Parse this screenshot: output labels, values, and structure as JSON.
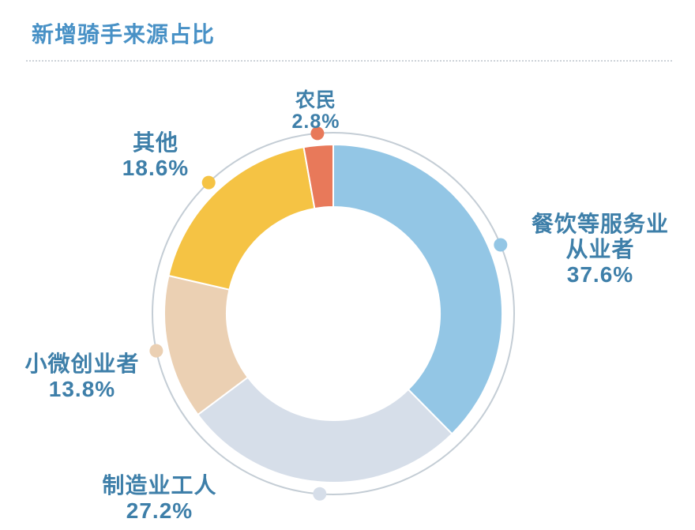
{
  "title": "新增骑手来源占比",
  "colors": {
    "title": "#4891C6",
    "label": "#3E7FA9",
    "divider": "#CDD2D8",
    "ring": "#C4CDD5",
    "background": "#FFFFFF"
  },
  "chart_data": {
    "type": "pie",
    "subtype": "donut",
    "title": "新增骑手来源占比",
    "unit": "%",
    "start_angle_deg": 0,
    "direction": "clockwise",
    "legend_position": "around",
    "slices": [
      {
        "label": "餐饮等服务业",
        "label2": "从业者",
        "value": 37.6,
        "display": "37.6%",
        "color": "#93C6E5"
      },
      {
        "label": "制造业工人",
        "label2": "",
        "value": 27.2,
        "display": "27.2%",
        "color": "#D6DEE9"
      },
      {
        "label": "小微创业者",
        "label2": "",
        "value": 13.8,
        "display": "13.8%",
        "color": "#EBD0B3"
      },
      {
        "label": "其他",
        "label2": "",
        "value": 18.6,
        "display": "18.6%",
        "color": "#F5C344"
      },
      {
        "label": "农民",
        "label2": "",
        "value": 2.8,
        "display": "2.8%",
        "color": "#E8795A"
      }
    ]
  }
}
